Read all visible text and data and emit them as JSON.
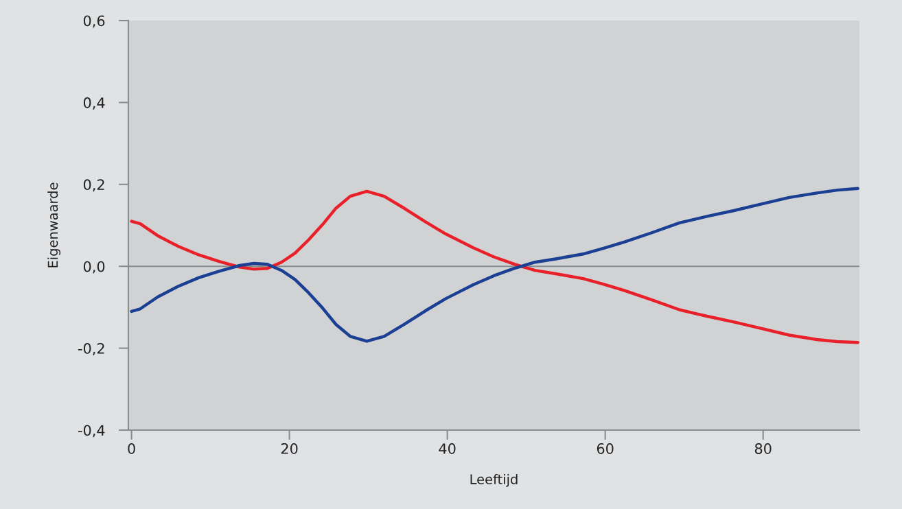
{
  "chart_data": {
    "type": "line",
    "xlabel": "Leeftijd",
    "ylabel": "Eigenwaarde",
    "x": [
      0,
      1.1,
      3.3,
      5.9,
      8.5,
      11.1,
      13.7,
      15.5,
      17.2,
      19,
      20.7,
      22.4,
      24.2,
      25.9,
      27.7,
      29.8,
      32,
      34.6,
      37.2,
      39.8,
      43.3,
      45.9,
      48.5,
      51.1,
      53.7,
      57.2,
      59.8,
      62.4,
      65.9,
      69.4,
      72.9,
      76.3,
      79.8,
      83.3,
      86.8,
      89.4,
      92
    ],
    "series": [
      {
        "color": "#e8202a",
        "values": [
          0.11,
          0.104,
          0.075,
          0.049,
          0.028,
          0.012,
          -0.002,
          -0.007,
          -0.005,
          0.01,
          0.032,
          0.064,
          0.102,
          0.142,
          0.171,
          0.183,
          0.171,
          0.141,
          0.109,
          0.079,
          0.045,
          0.023,
          0.005,
          -0.01,
          -0.018,
          -0.03,
          -0.044,
          -0.059,
          -0.082,
          -0.106,
          -0.122,
          -0.136,
          -0.152,
          -0.168,
          -0.179,
          -0.184,
          -0.186
        ]
      },
      {
        "color": "#1a3f93",
        "values": [
          -0.11,
          -0.104,
          -0.075,
          -0.049,
          -0.028,
          -0.012,
          0.002,
          0.007,
          0.005,
          -0.01,
          -0.032,
          -0.064,
          -0.102,
          -0.142,
          -0.171,
          -0.183,
          -0.171,
          -0.141,
          -0.109,
          -0.079,
          -0.045,
          -0.023,
          -0.005,
          0.01,
          0.018,
          0.03,
          0.044,
          0.059,
          0.082,
          0.106,
          0.122,
          0.136,
          0.152,
          0.168,
          0.179,
          0.186,
          0.19
        ]
      }
    ],
    "xlim": [
      -0.4,
      92.2
    ],
    "xticks": [
      0,
      20,
      40,
      60,
      80
    ],
    "ylim": [
      -0.4,
      0.6
    ],
    "yticks": [
      {
        "value": -0.4,
        "label": "-0,4"
      },
      {
        "value": -0.2,
        "label": "-0,2"
      },
      {
        "value": 0,
        "label": "0,0"
      },
      {
        "value": 0.2,
        "label": "0,2"
      },
      {
        "value": 0.4,
        "label": "0,4"
      },
      {
        "value": 0.6,
        "label": "0,6"
      }
    ],
    "ref_lines": [
      {
        "axis": "y",
        "value": 0,
        "color": "#8a8b8d",
        "line_style": "solid"
      }
    ],
    "marker": "none",
    "line_style": "solid"
  }
}
